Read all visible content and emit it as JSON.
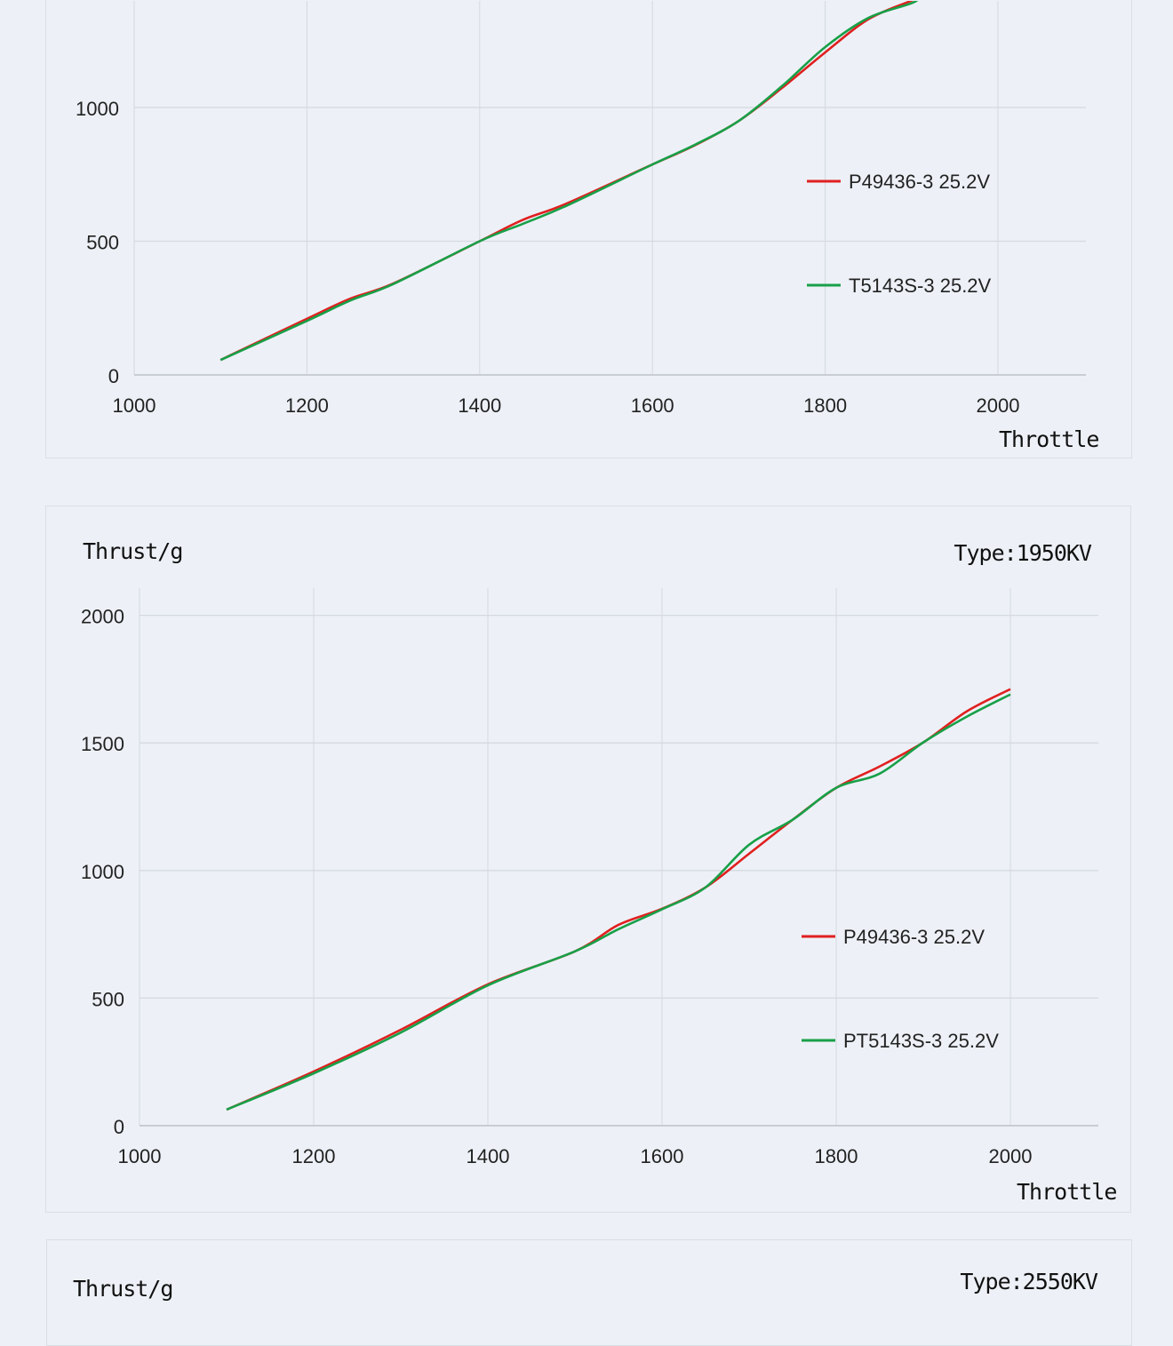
{
  "chart_data": [
    {
      "type": "line",
      "title": "",
      "ylabel": "",
      "xlabel": "Throttle",
      "xlim": [
        1000,
        2100
      ],
      "xticks": [
        1000,
        1200,
        1400,
        1600,
        1800,
        2000
      ],
      "yticks": [
        0,
        500,
        1000
      ],
      "ylim": [
        0,
        1400
      ],
      "grid": true,
      "legend": "right",
      "series": [
        {
          "name": "P49436-3 25.2V",
          "color": "#e02020",
          "x": [
            1100,
            1200,
            1250,
            1300,
            1400,
            1450,
            1500,
            1600,
            1650,
            1700,
            1750,
            1800,
            1850,
            1900,
            1910
          ],
          "y": [
            56,
            210,
            285,
            342,
            500,
            580,
            640,
            787,
            860,
            950,
            1073,
            1206,
            1330,
            1400,
            1420
          ]
        },
        {
          "name": "T5143S-3 25.2V",
          "color": "#18a048",
          "x": [
            1100,
            1200,
            1250,
            1300,
            1400,
            1450,
            1500,
            1600,
            1650,
            1700,
            1750,
            1800,
            1850,
            1900,
            1910
          ],
          "y": [
            56,
            202,
            278,
            340,
            500,
            565,
            632,
            787,
            862,
            950,
            1080,
            1226,
            1335,
            1390,
            1415
          ]
        }
      ]
    },
    {
      "type": "line",
      "title": "Type:1950KV",
      "ylabel": "Thrust/g",
      "xlabel": "Throttle",
      "xlim": [
        1000,
        2100
      ],
      "xticks": [
        1000,
        1200,
        1400,
        1600,
        1800,
        2000
      ],
      "yticks": [
        0,
        500,
        1000,
        1500,
        2000
      ],
      "ylim": [
        0,
        2000
      ],
      "grid": true,
      "legend": "right",
      "series": [
        {
          "name": "P49436-3 25.2V",
          "color": "#e02020",
          "x": [
            1100,
            1200,
            1300,
            1400,
            1500,
            1550,
            1600,
            1650,
            1700,
            1750,
            1800,
            1850,
            1900,
            1950,
            2000
          ],
          "y": [
            63,
            212,
            376,
            554,
            683,
            787,
            850,
            934,
            1066,
            1199,
            1324,
            1408,
            1502,
            1624,
            1711
          ]
        },
        {
          "name": "PT5143S-3 25.2V",
          "color": "#18a048",
          "x": [
            1100,
            1200,
            1300,
            1400,
            1500,
            1550,
            1600,
            1650,
            1700,
            1750,
            1800,
            1850,
            1900,
            1950,
            2000
          ],
          "y": [
            63,
            205,
            365,
            550,
            683,
            770,
            848,
            934,
            1101,
            1199,
            1324,
            1380,
            1502,
            1603,
            1690
          ]
        }
      ]
    },
    {
      "type": "line",
      "title": "Type:2550KV",
      "ylabel": "Thrust/g"
    }
  ]
}
